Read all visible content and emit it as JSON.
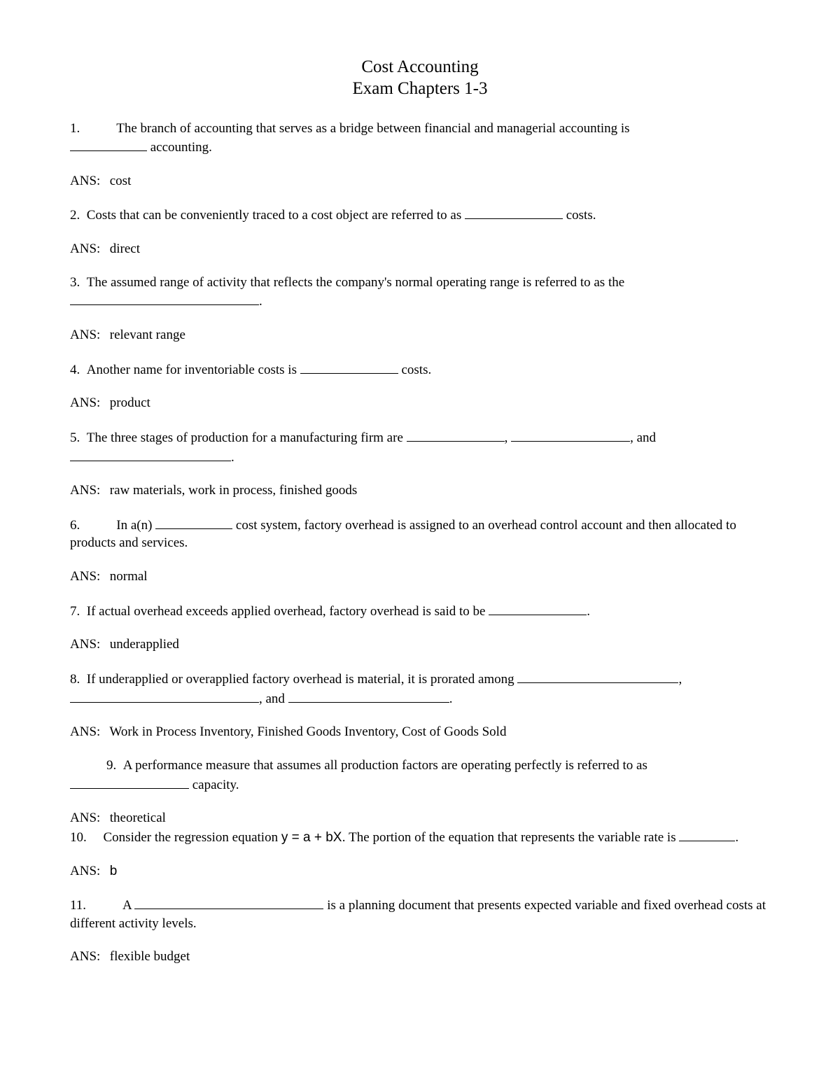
{
  "title_line1": "Cost Accounting",
  "title_line2": "Exam Chapters 1-3",
  "ans_label": "ANS:",
  "q1": {
    "num": "1.",
    "text_a": "The branch of accounting that serves as a bridge between financial and managerial accounting is",
    "text_b": " accounting.",
    "answer": "cost"
  },
  "q2": {
    "num": "2.",
    "text_a": "Costs that can be conveniently traced to a cost object are referred to as ",
    "text_b": " costs.",
    "answer": "direct"
  },
  "q3": {
    "num": "3.",
    "text_a": "The assumed range of activity that reflects the company's normal operating range is referred to as the",
    "text_b": ".",
    "answer": "relevant range"
  },
  "q4": {
    "num": "4.",
    "text_a": "Another name for inventoriable costs is ",
    "text_b": " costs.",
    "answer": "product"
  },
  "q5": {
    "num": "5.",
    "text_a": "The three stages of production for a manufacturing firm are ",
    "text_b": ", ",
    "text_c": ", and",
    "text_d": ".",
    "answer": "raw materials, work in process, finished goods"
  },
  "q6": {
    "num": "6.",
    "text_a": "In a(n) ",
    "text_b": " cost system, factory overhead is assigned to an overhead control account and then allocated to products and services.",
    "answer": "normal"
  },
  "q7": {
    "num": "7.",
    "text_a": "If actual overhead exceeds applied overhead, factory overhead is said to be ",
    "text_b": ".",
    "answer": "underapplied"
  },
  "q8": {
    "num": "8.",
    "text_a": "If underapplied or overapplied factory overhead is material, it is prorated among ",
    "text_b": ",",
    "text_c": ", and ",
    "text_d": ".",
    "answer": "Work in Process Inventory, Finished Goods Inventory, Cost of Goods Sold"
  },
  "q9": {
    "num": "9.",
    "text_a": "A performance measure that assumes all production factors are operating perfectly is referred to as",
    "text_b": " capacity.",
    "answer": "theoretical"
  },
  "q10": {
    "num": "10.",
    "text_a": "Consider the regression equation ",
    "equation": "y = a + bX.",
    "text_b": "   The portion of the equation that represents the variable rate is ",
    "text_c": ".",
    "answer": "b"
  },
  "q11": {
    "num": "11.",
    "text_a": "A ",
    "text_b": " is a planning document that presents expected variable and fixed overhead costs at different activity levels.",
    "answer": "flexible budget"
  }
}
